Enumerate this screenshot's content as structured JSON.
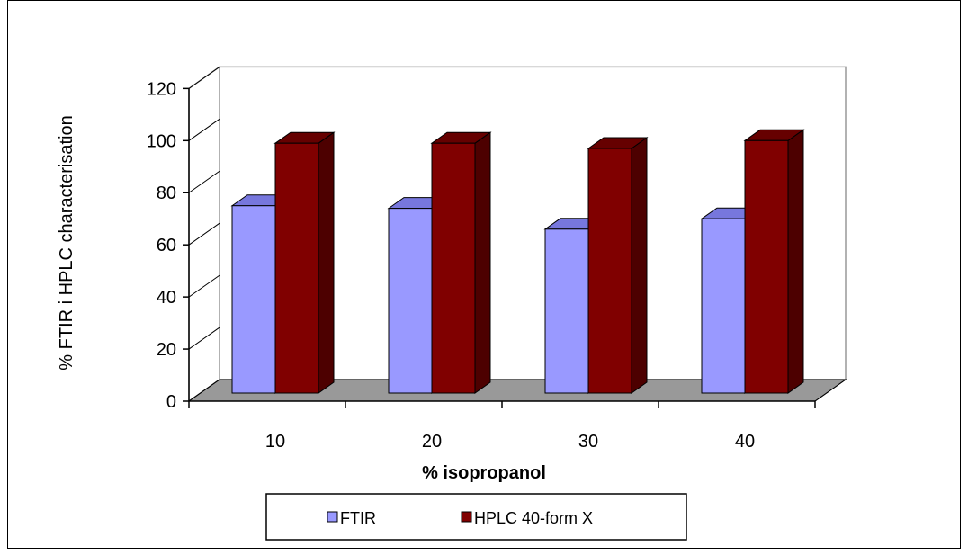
{
  "chart_data": {
    "type": "bar",
    "title": "",
    "xlabel": "% isopropanol",
    "ylabel": "% FTIR i HPLC characterisation",
    "categories": [
      "10",
      "20",
      "30",
      "40"
    ],
    "ylim": [
      0,
      120
    ],
    "yticks": [
      "0",
      "20",
      "40",
      "60",
      "80",
      "100",
      "120"
    ],
    "grid": false,
    "legend_position": "bottom",
    "series": [
      {
        "name": "FTIR",
        "values": [
          75,
          74,
          66,
          70
        ],
        "color": "#9999ff",
        "top_color": "#7777dd",
        "side_color": "#6666bb"
      },
      {
        "name": "HPLC 40-form X",
        "values": [
          99,
          99,
          97,
          100
        ],
        "color": "#800000",
        "top_color": "#660000",
        "side_color": "#4d0000"
      }
    ],
    "floor_color": "#999999"
  }
}
